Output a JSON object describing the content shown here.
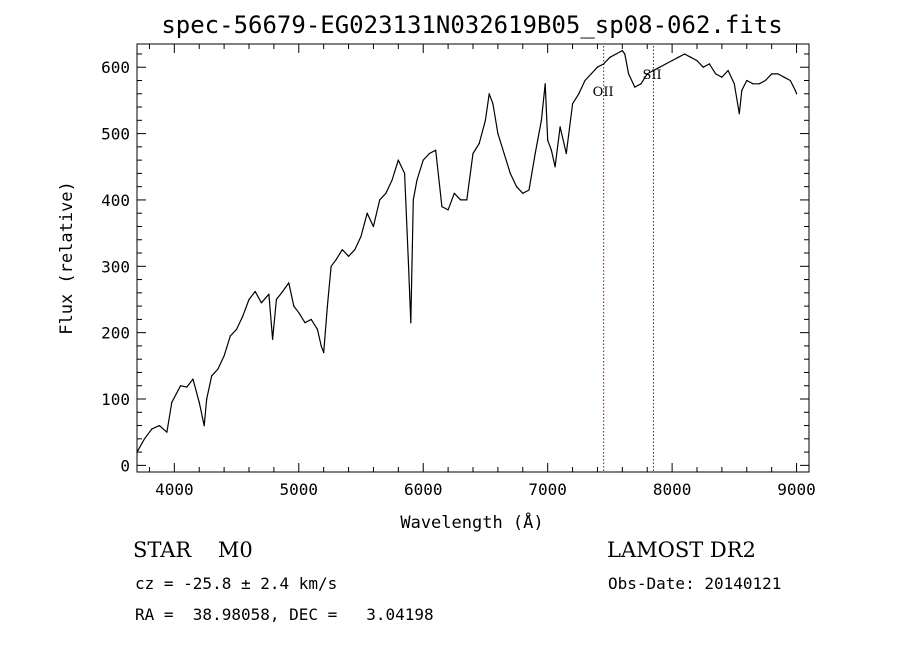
{
  "chart_data": {
    "type": "line",
    "title": "spec-56679-EG023131N032619B05_sp08-062.fits",
    "xlabel": "Wavelength (Å)",
    "ylabel": "Flux (relative)",
    "xlim": [
      3700,
      9100
    ],
    "ylim": [
      -10,
      635
    ],
    "xticks": [
      4000,
      5000,
      6000,
      7000,
      8000,
      9000
    ],
    "yticks": [
      0,
      100,
      200,
      300,
      400,
      500,
      600
    ],
    "grid": false,
    "line_color": "#000000",
    "marker_color": "#a00000",
    "lines": [
      {
        "label": "OII",
        "x": 7450
      },
      {
        "label": "SII",
        "x": 7850
      }
    ],
    "series": [
      {
        "x": [
          3700,
          3760,
          3820,
          3880,
          3940,
          3980,
          4050,
          4100,
          4150,
          4200,
          4240,
          4260,
          4300,
          4350,
          4400,
          4450,
          4500,
          4550,
          4600,
          4650,
          4700,
          4760,
          4790,
          4820,
          4870,
          4920,
          4960,
          5000,
          5050,
          5100,
          5150,
          5180,
          5200,
          5230,
          5260,
          5300,
          5350,
          5400,
          5450,
          5500,
          5550,
          5600,
          5650,
          5700,
          5750,
          5800,
          5850,
          5880,
          5900,
          5920,
          5950,
          6000,
          6050,
          6100,
          6150,
          6200,
          6250,
          6300,
          6350,
          6400,
          6450,
          6500,
          6530,
          6560,
          6600,
          6650,
          6700,
          6750,
          6800,
          6850,
          6900,
          6950,
          6980,
          7000,
          7030,
          7060,
          7100,
          7150,
          7200,
          7250,
          7300,
          7350,
          7400,
          7450,
          7500,
          7550,
          7600,
          7620,
          7650,
          7700,
          7750,
          7800,
          7850,
          7900,
          7950,
          8000,
          8050,
          8100,
          8150,
          8200,
          8250,
          8300,
          8350,
          8400,
          8450,
          8500,
          8540,
          8560,
          8600,
          8650,
          8700,
          8750,
          8800,
          8850,
          8900,
          8950,
          8990,
          9000
        ],
        "y": [
          20,
          40,
          55,
          60,
          50,
          95,
          120,
          118,
          130,
          95,
          60,
          100,
          135,
          145,
          165,
          195,
          205,
          225,
          250,
          262,
          245,
          258,
          190,
          250,
          262,
          275,
          240,
          230,
          215,
          220,
          205,
          180,
          170,
          240,
          300,
          310,
          325,
          315,
          325,
          345,
          380,
          360,
          400,
          410,
          430,
          460,
          440,
          310,
          215,
          400,
          430,
          460,
          470,
          475,
          390,
          385,
          410,
          400,
          400,
          470,
          485,
          520,
          560,
          545,
          500,
          470,
          440,
          420,
          410,
          415,
          470,
          520,
          575,
          490,
          475,
          450,
          510,
          470,
          545,
          560,
          580,
          590,
          600,
          605,
          615,
          620,
          625,
          620,
          590,
          570,
          575,
          590,
          595,
          600,
          605,
          610,
          615,
          620,
          615,
          610,
          600,
          605,
          590,
          585,
          595,
          575,
          530,
          565,
          580,
          575,
          575,
          580,
          590,
          590,
          585,
          580,
          565,
          560
        ]
      }
    ]
  },
  "info": {
    "class_line": "STAR    M0",
    "cz_line": "cz = -25.8 ± 2.4 km/s",
    "radec_line": "RA =  38.98058, DEC =   3.04198",
    "survey_line": "LAMOST DR2",
    "obsdate_line": "Obs-Date: 20140121"
  }
}
